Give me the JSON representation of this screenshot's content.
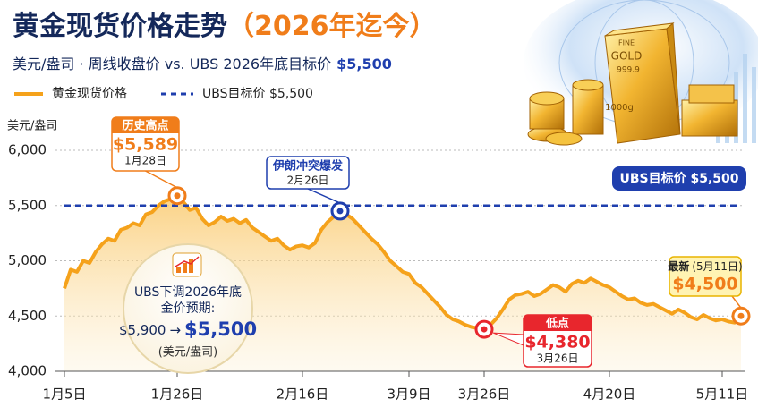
{
  "chart_data": {
    "type": "area",
    "title": [
      "黄金现货价格走势",
      "（2026年迄今）"
    ],
    "subtitle": [
      "美元/盎司 · 周线收盘价   vs.   UBS 2026年底目标价",
      "$5,500"
    ],
    "y_label": "美元/盎司",
    "categories": [
      "1月5日",
      null,
      null,
      null,
      null,
      null,
      null,
      null,
      null,
      null,
      null,
      null,
      null,
      null,
      null,
      null,
      null,
      null,
      "1月26日",
      null,
      null,
      null,
      null,
      null,
      null,
      null,
      null,
      null,
      null,
      null,
      null,
      null,
      null,
      null,
      null,
      null,
      null,
      null,
      "2月16日",
      null,
      null,
      null,
      null,
      null,
      null,
      null,
      null,
      null,
      null,
      null,
      null,
      null,
      null,
      null,
      null,
      "3月9日",
      null,
      null,
      null,
      null,
      null,
      null,
      null,
      null,
      null,
      null,
      null,
      "3月26日",
      null,
      null,
      null,
      null,
      null,
      null,
      null,
      null,
      null,
      null,
      null,
      null,
      null,
      null,
      null,
      null,
      null,
      null,
      null,
      "4月20日",
      null,
      null,
      null,
      null,
      null,
      null,
      null,
      null,
      null,
      null,
      null,
      null,
      null,
      null,
      null,
      null,
      null,
      "5月11日",
      null,
      null,
      null
    ],
    "series": [
      {
        "name": "黄金现货价格",
        "color": "#f5a21b",
        "values": [
          4750,
          4920,
          4900,
          5000,
          4980,
          5080,
          5150,
          5200,
          5180,
          5280,
          5300,
          5340,
          5320,
          5420,
          5440,
          5500,
          5540,
          5560,
          5589,
          5530,
          5460,
          5480,
          5380,
          5320,
          5350,
          5400,
          5360,
          5380,
          5340,
          5370,
          5300,
          5260,
          5220,
          5180,
          5200,
          5140,
          5100,
          5130,
          5140,
          5120,
          5160,
          5280,
          5350,
          5400,
          5450,
          5420,
          5380,
          5320,
          5260,
          5200,
          5150,
          5080,
          5000,
          4950,
          4900,
          4880,
          4800,
          4760,
          4700,
          4640,
          4580,
          4510,
          4470,
          4450,
          4420,
          4400,
          4390,
          4380,
          4420,
          4480,
          4560,
          4650,
          4690,
          4700,
          4720,
          4680,
          4700,
          4740,
          4780,
          4760,
          4720,
          4790,
          4820,
          4800,
          4840,
          4810,
          4780,
          4760,
          4720,
          4680,
          4650,
          4660,
          4620,
          4600,
          4610,
          4580,
          4550,
          4520,
          4560,
          4530,
          4490,
          4470,
          4510,
          4480,
          4460,
          4470,
          4450,
          4440,
          4500
        ]
      }
    ],
    "target": {
      "value": 5500,
      "label": "UBS目标价 $5,500",
      "color": "#1f3fae"
    },
    "ylim": [
      4000,
      6000
    ],
    "yticks": [
      {
        "value": 4000,
        "label": "4,000"
      },
      {
        "value": 4500,
        "label": "4,500"
      },
      {
        "value": 5000,
        "label": "5,000"
      },
      {
        "value": 5500,
        "label": "5,500"
      },
      {
        "value": 6000,
        "label": "6,000"
      }
    ],
    "grid": true,
    "annotations": [
      {
        "label": "历史高点",
        "value": 5589,
        "value_label": "$5,589",
        "date": "1月28日",
        "color": "#f07d1a"
      },
      {
        "label": "伊朗冲突爆发",
        "value": 5450,
        "date": "2月26日",
        "color": "#1f3fae"
      },
      {
        "label": "低点",
        "value": 4380,
        "value_label": "$4,380",
        "date": "3月26日",
        "color": "#e8262d"
      },
      {
        "label": "最新",
        "value": 4500,
        "value_label": "$4,500",
        "date": "(5月11日)",
        "color": "#f07d1a"
      }
    ],
    "note": {
      "lines": [
        "UBS下调2026年底",
        "金价预期:"
      ],
      "old": "$5,900",
      "arrow": "→",
      "new": "$5,500",
      "unit": "(美元/盎司)"
    },
    "image_text": [
      "FINE",
      "GOLD",
      "999.9",
      "1000g"
    ]
  }
}
